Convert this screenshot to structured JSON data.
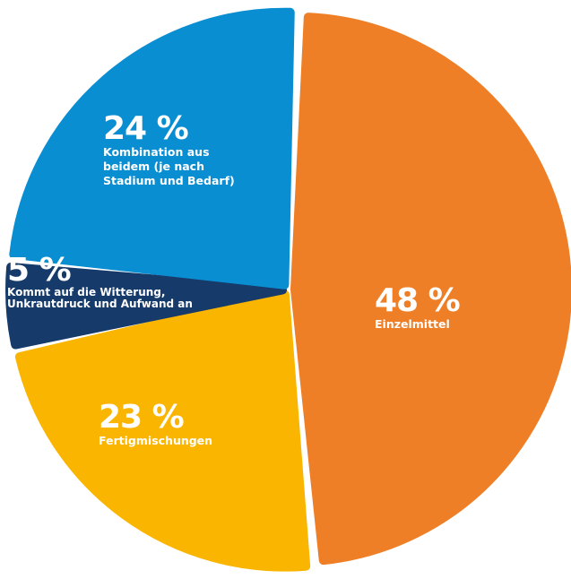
{
  "chart_data": {
    "type": "pie",
    "categories": [
      "Einzelmittel",
      "Fertigmischungen",
      "Kommt auf die Witterung, Unkrautdruck und Aufwand an",
      "Kombination aus beidem (je nach Stadium und Bedarf)"
    ],
    "values": [
      48,
      23,
      5,
      24
    ],
    "value_labels": [
      "48 %",
      "23 %",
      "5 %",
      "24 %"
    ],
    "colors": [
      "#ee7f27",
      "#f9b500",
      "#163a6a",
      "#0a8ed2"
    ]
  }
}
